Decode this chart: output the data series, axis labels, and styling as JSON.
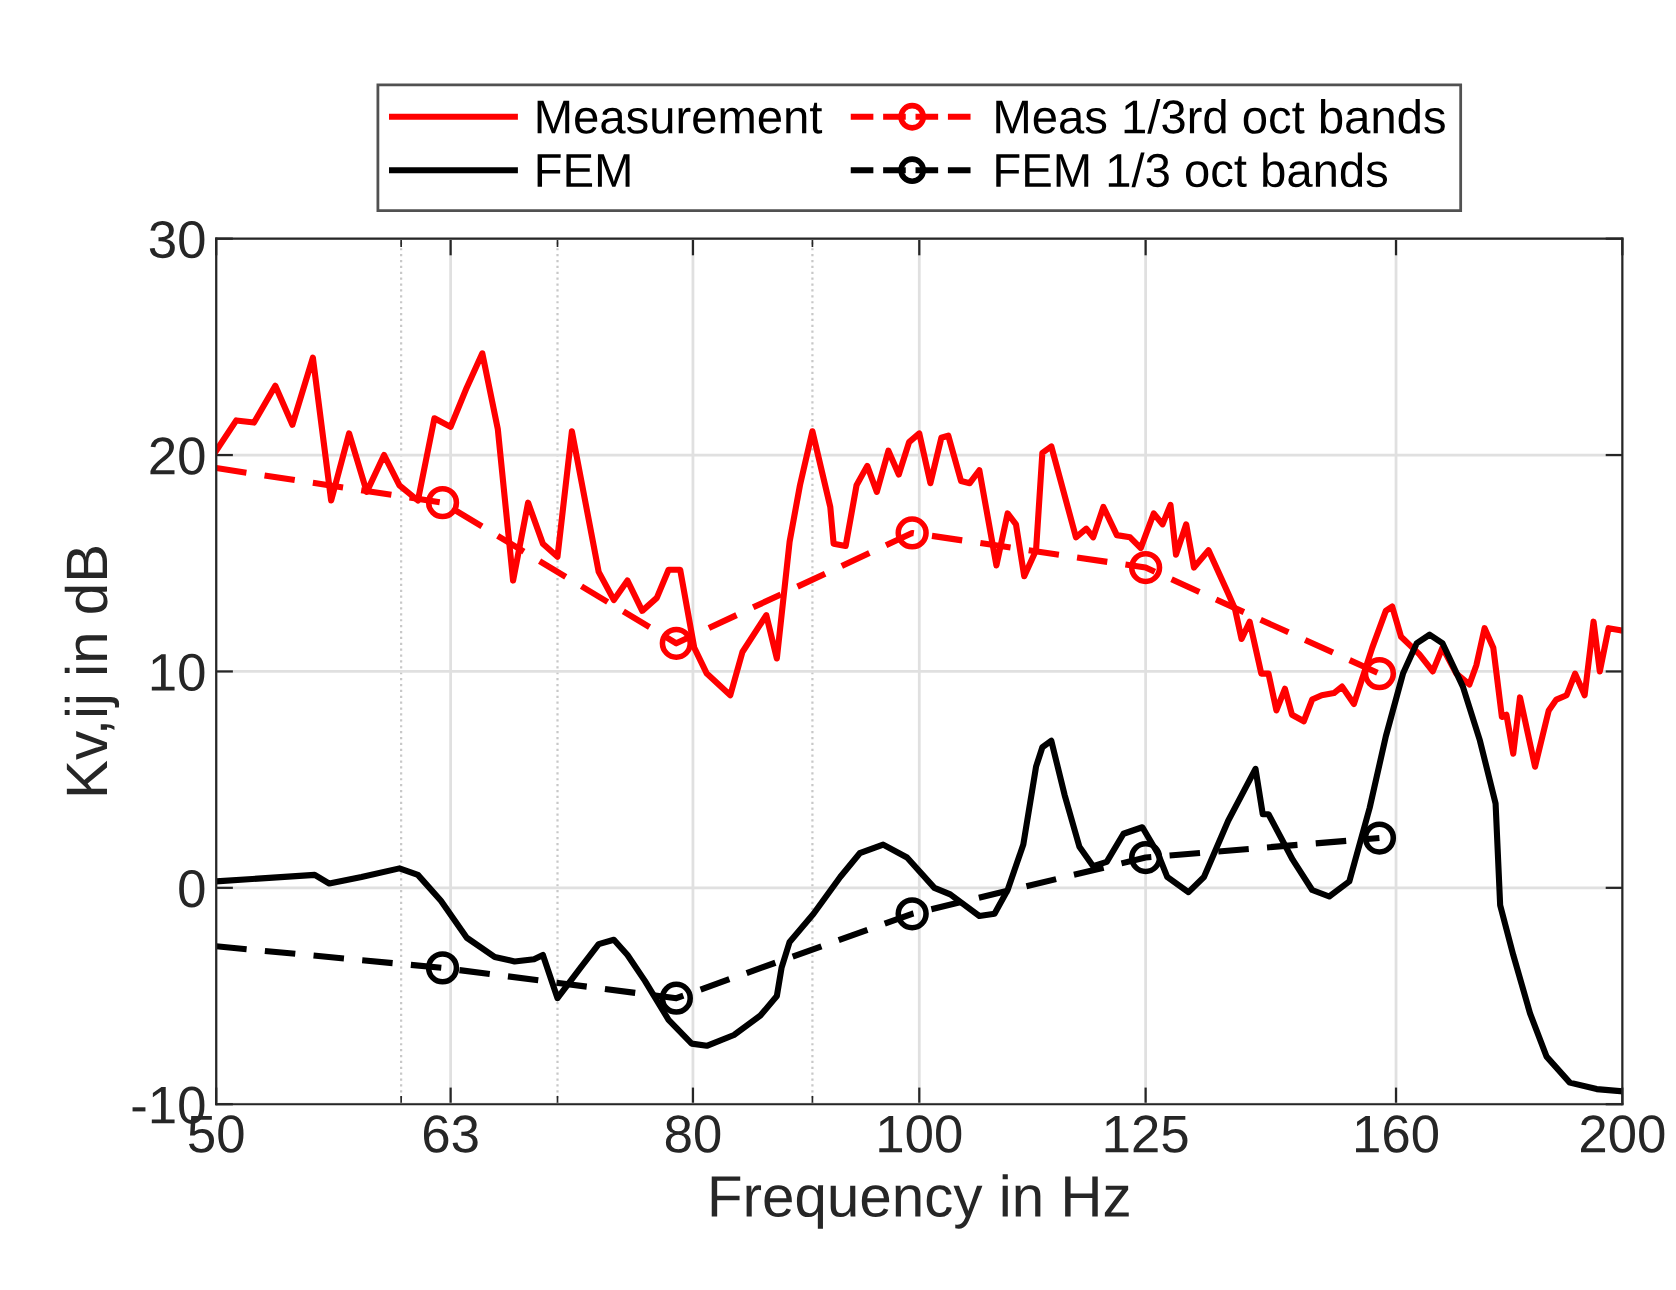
{
  "chart_data": {
    "type": "line",
    "xlabel": "Frequency in Hz",
    "ylabel": "Kv,ij in dB",
    "log": "x",
    "grid": true,
    "legend": "top",
    "xlim": [
      50,
      200
    ],
    "xticks": [
      50,
      {
        "value": 60,
        "label": null
      },
      63,
      {
        "value": 70,
        "label": null
      },
      80,
      {
        "value": 90,
        "label": null
      },
      100,
      125,
      160,
      200
    ],
    "ylim": [
      -10,
      30
    ],
    "yticks": [
      -10,
      0,
      10,
      20,
      30
    ],
    "series": [
      {
        "name": "Measurement",
        "color": "#ff0000",
        "line_style": "solid",
        "marker": "none",
        "x": [
          50,
          51.0,
          51.9,
          53.0,
          53.9,
          55.0,
          56.0,
          57.0,
          58.0,
          59.0,
          59.9,
          61.0,
          62.0,
          63.0,
          64.0,
          65.0,
          66.0,
          67.0,
          68.0,
          69.0,
          70.0,
          71.0,
          72.9,
          74.0,
          75.0,
          76.1,
          77.2,
          78.1,
          79.0,
          80.1,
          81.1,
          83.0,
          84.0,
          86.0,
          86.9,
          88.0,
          88.9,
          90.0,
          91.6,
          91.9,
          93.0,
          94.0,
          95.0,
          95.9,
          97.0,
          98.0,
          99.0,
          100.0,
          101.1,
          102.2,
          102.9,
          104.2,
          105.1,
          106.1,
          107.9,
          109.1,
          110.0,
          110.9,
          112.2,
          112.9,
          113.9,
          116.7,
          117.9,
          118.7,
          119.9,
          121.5,
          123.1,
          124.4,
          126.0,
          127.1,
          128.1,
          128.8,
          130.1,
          131.1,
          133.0,
          135.6,
          136.5,
          137.4,
          138.5,
          140.1,
          141.1,
          142.2,
          143.4,
          144.4,
          146.1,
          147.3,
          148.7,
          150.5,
          151.7,
          153.5,
          156.3,
          158.4,
          159.4,
          160.8,
          163.7,
          165.9,
          167.5,
          169.8,
          172.0,
          173.2,
          174.6,
          176.1,
          177.6,
          178.4,
          179.6,
          180.8,
          183.5,
          186.0,
          187.4,
          189.3,
          190.9,
          192.7,
          194.4,
          195.6,
          197.3,
          199.6,
          200
        ],
        "values": [
          20.2,
          21.6,
          21.5,
          23.2,
          21.4,
          24.5,
          17.9,
          21.0,
          18.3,
          20.0,
          18.6,
          17.9,
          21.7,
          21.3,
          23.1,
          24.7,
          21.2,
          14.2,
          17.8,
          15.9,
          15.3,
          21.1,
          14.6,
          13.3,
          14.2,
          12.8,
          13.4,
          14.7,
          14.7,
          11.1,
          9.9,
          8.9,
          10.9,
          12.6,
          10.6,
          16.0,
          18.6,
          21.1,
          17.6,
          15.9,
          15.8,
          18.6,
          19.5,
          18.3,
          20.2,
          19.1,
          20.6,
          21.0,
          18.7,
          20.8,
          20.9,
          18.8,
          18.7,
          19.3,
          14.9,
          17.3,
          16.8,
          14.4,
          15.6,
          20.1,
          20.4,
          16.2,
          16.6,
          16.2,
          17.6,
          16.3,
          16.2,
          15.7,
          17.3,
          16.8,
          17.7,
          15.4,
          16.8,
          14.8,
          15.6,
          13.6,
          12.9,
          11.5,
          12.3,
          9.9,
          9.9,
          8.2,
          9.2,
          8.0,
          7.7,
          8.7,
          8.9,
          9.0,
          9.3,
          8.5,
          11.1,
          12.8,
          13.0,
          11.6,
          10.8,
          10.0,
          11.1,
          9.9,
          9.4,
          10.3,
          12.0,
          11.1,
          7.9,
          8.0,
          6.2,
          8.8,
          5.6,
          8.2,
          8.7,
          8.9,
          9.9,
          8.9,
          12.3,
          10.0,
          12.0,
          11.9,
          11.9
        ]
      },
      {
        "name": "Meas 1/3rd oct bands",
        "color": "#ff0000",
        "line_style": "dashed",
        "marker": "circle",
        "x": [
          50,
          62.5,
          78.7,
          99.3,
          125.0,
          157.4
        ],
        "values": [
          19.4,
          17.8,
          11.3,
          16.4,
          14.8,
          9.9
        ]
      },
      {
        "name": "FEM",
        "color": "#000000",
        "line_style": "solid",
        "marker": "none",
        "x": [
          50,
          55.1,
          55.9,
          57.7,
          59.9,
          61.0,
          62.4,
          64.0,
          65.8,
          67.1,
          68.4,
          69.0,
          70.0,
          71.6,
          72.9,
          74.0,
          75.0,
          76.3,
          78.1,
          79.9,
          81.1,
          83.3,
          85.5,
          86.9,
          87.3,
          88.0,
          90.1,
          92.5,
          94.3,
          96.5,
          98.8,
          101.5,
          103.1,
          106.1,
          107.7,
          109.1,
          110.8,
          112.2,
          112.9,
          113.9,
          115.4,
          117.1,
          118.7,
          120.3,
          122.3,
          124.6,
          126.5,
          127.7,
          130.4,
          132.4,
          135.6,
          139.3,
          140.3,
          141.1,
          144.5,
          147.3,
          149.8,
          152.8,
          155.9,
          158.4,
          161.1,
          163.3,
          165.4,
          167.5,
          170.9,
          173.8,
          176.5,
          177.3,
          179.6,
          182.6,
          185.6,
          189.9,
          195.0,
          200
        ],
        "values": [
          0.3,
          0.6,
          0.2,
          0.5,
          0.9,
          0.6,
          -0.6,
          -2.3,
          -3.2,
          -3.4,
          -3.3,
          -3.1,
          -5.1,
          -3.7,
          -2.6,
          -2.4,
          -3.1,
          -4.3,
          -6.1,
          -7.2,
          -7.3,
          -6.8,
          -5.9,
          -5.0,
          -3.7,
          -2.5,
          -1.2,
          0.5,
          1.6,
          2.0,
          1.4,
          0.0,
          -0.3,
          -1.3,
          -1.2,
          -0.1,
          2.0,
          5.6,
          6.5,
          6.8,
          4.3,
          1.9,
          1.0,
          1.2,
          2.5,
          2.8,
          1.6,
          0.5,
          -0.2,
          0.5,
          3.1,
          5.5,
          3.4,
          3.4,
          1.3,
          -0.1,
          -0.4,
          0.3,
          3.7,
          7.0,
          9.9,
          11.3,
          11.7,
          11.3,
          9.3,
          6.8,
          3.9,
          -0.8,
          -3.1,
          -5.8,
          -7.8,
          -9.0,
          -9.3,
          -9.4
        ]
      },
      {
        "name": "FEM 1/3 oct bands",
        "color": "#000000",
        "line_style": "dashed",
        "marker": "circle",
        "x": [
          50,
          62.5,
          78.7,
          99.3,
          125.0,
          157.4
        ],
        "values": [
          -2.7,
          -3.7,
          -5.1,
          -1.2,
          1.4,
          2.3
        ]
      }
    ]
  }
}
